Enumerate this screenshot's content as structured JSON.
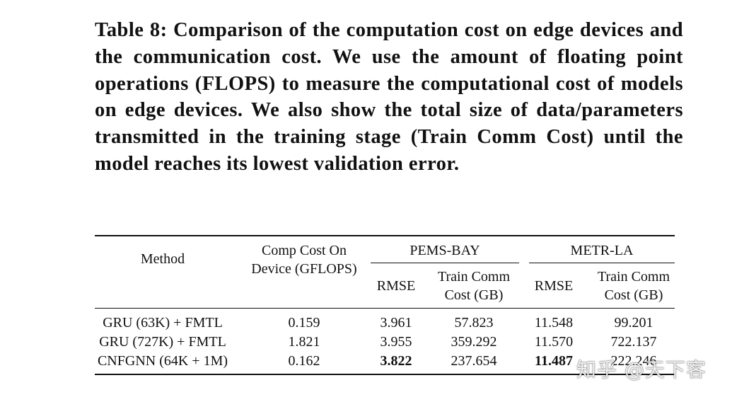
{
  "caption": "Table 8: Comparison of the computation cost on edge de­vices and the communication cost. We use the amount of floating point operations (FLOPS) to measure the computa­tional cost of models on edge devices. We also show the to­tal size of data/parameters transmitted in the training stage (Train Comm Cost) until the model reaches its lowest vali­dation error.",
  "table": {
    "headers": {
      "method": "Method",
      "comp_cost_line1": "Comp Cost On",
      "comp_cost_line2": "Device (GFLOPS)",
      "group1": "PEMS-BAY",
      "group2": "METR-LA",
      "rmse": "RMSE",
      "train_comm_line1": "Train Comm",
      "train_comm_line2": "Cost (GB)"
    },
    "rows": [
      {
        "method": "GRU (63K) + FMTL",
        "comp": "0.159",
        "pems_rmse": "3.961",
        "pems_comm": "57.823",
        "metr_rmse": "11.548",
        "metr_comm": "99.201"
      },
      {
        "method": "GRU (727K) + FMTL",
        "comp": "1.821",
        "pems_rmse": "3.955",
        "pems_comm": "359.292",
        "metr_rmse": "11.570",
        "metr_comm": "722.137"
      },
      {
        "method": "CNFGNN (64K + 1M)",
        "comp": "0.162",
        "pems_rmse": "3.822",
        "pems_comm": "237.654",
        "metr_rmse": "11.487",
        "metr_comm": "222.246"
      }
    ]
  },
  "watermark": "知乎 @天下客"
}
